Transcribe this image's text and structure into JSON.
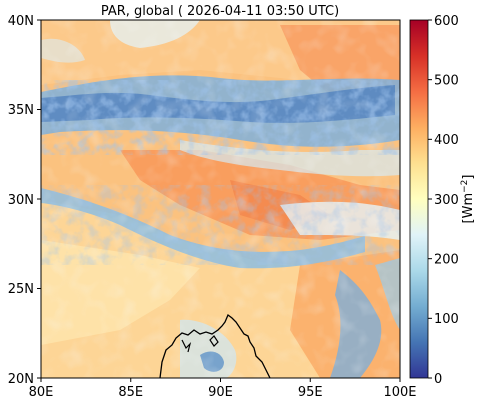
{
  "title": "PAR, global ( 2026-04-11 03:50 UTC)",
  "map": {
    "x_ticks": [
      "80E",
      "85E",
      "90E",
      "95E",
      "100E"
    ],
    "y_ticks": [
      "40N",
      "35N",
      "30N",
      "25N",
      "20N"
    ],
    "lon_range": [
      80,
      100
    ],
    "lat_range": [
      20,
      40
    ]
  },
  "colorbar": {
    "label": "[Wm",
    "label_superscript": "−2",
    "label_close": "]",
    "ticks": [
      "600",
      "500",
      "400",
      "300",
      "200",
      "100",
      "0"
    ],
    "range": [
      0,
      600
    ],
    "colormap": "RdYlBu_r",
    "colors": [
      "#313695",
      "#4575b4",
      "#74add1",
      "#abd9e9",
      "#e0f3f8",
      "#ffffbf",
      "#fee090",
      "#fdae61",
      "#f46d43",
      "#d73027",
      "#a50026"
    ]
  },
  "colors": {
    "land_base": "#fbc27f",
    "cloud_blue": "#6a9bd0",
    "coastline": "#000000"
  }
}
